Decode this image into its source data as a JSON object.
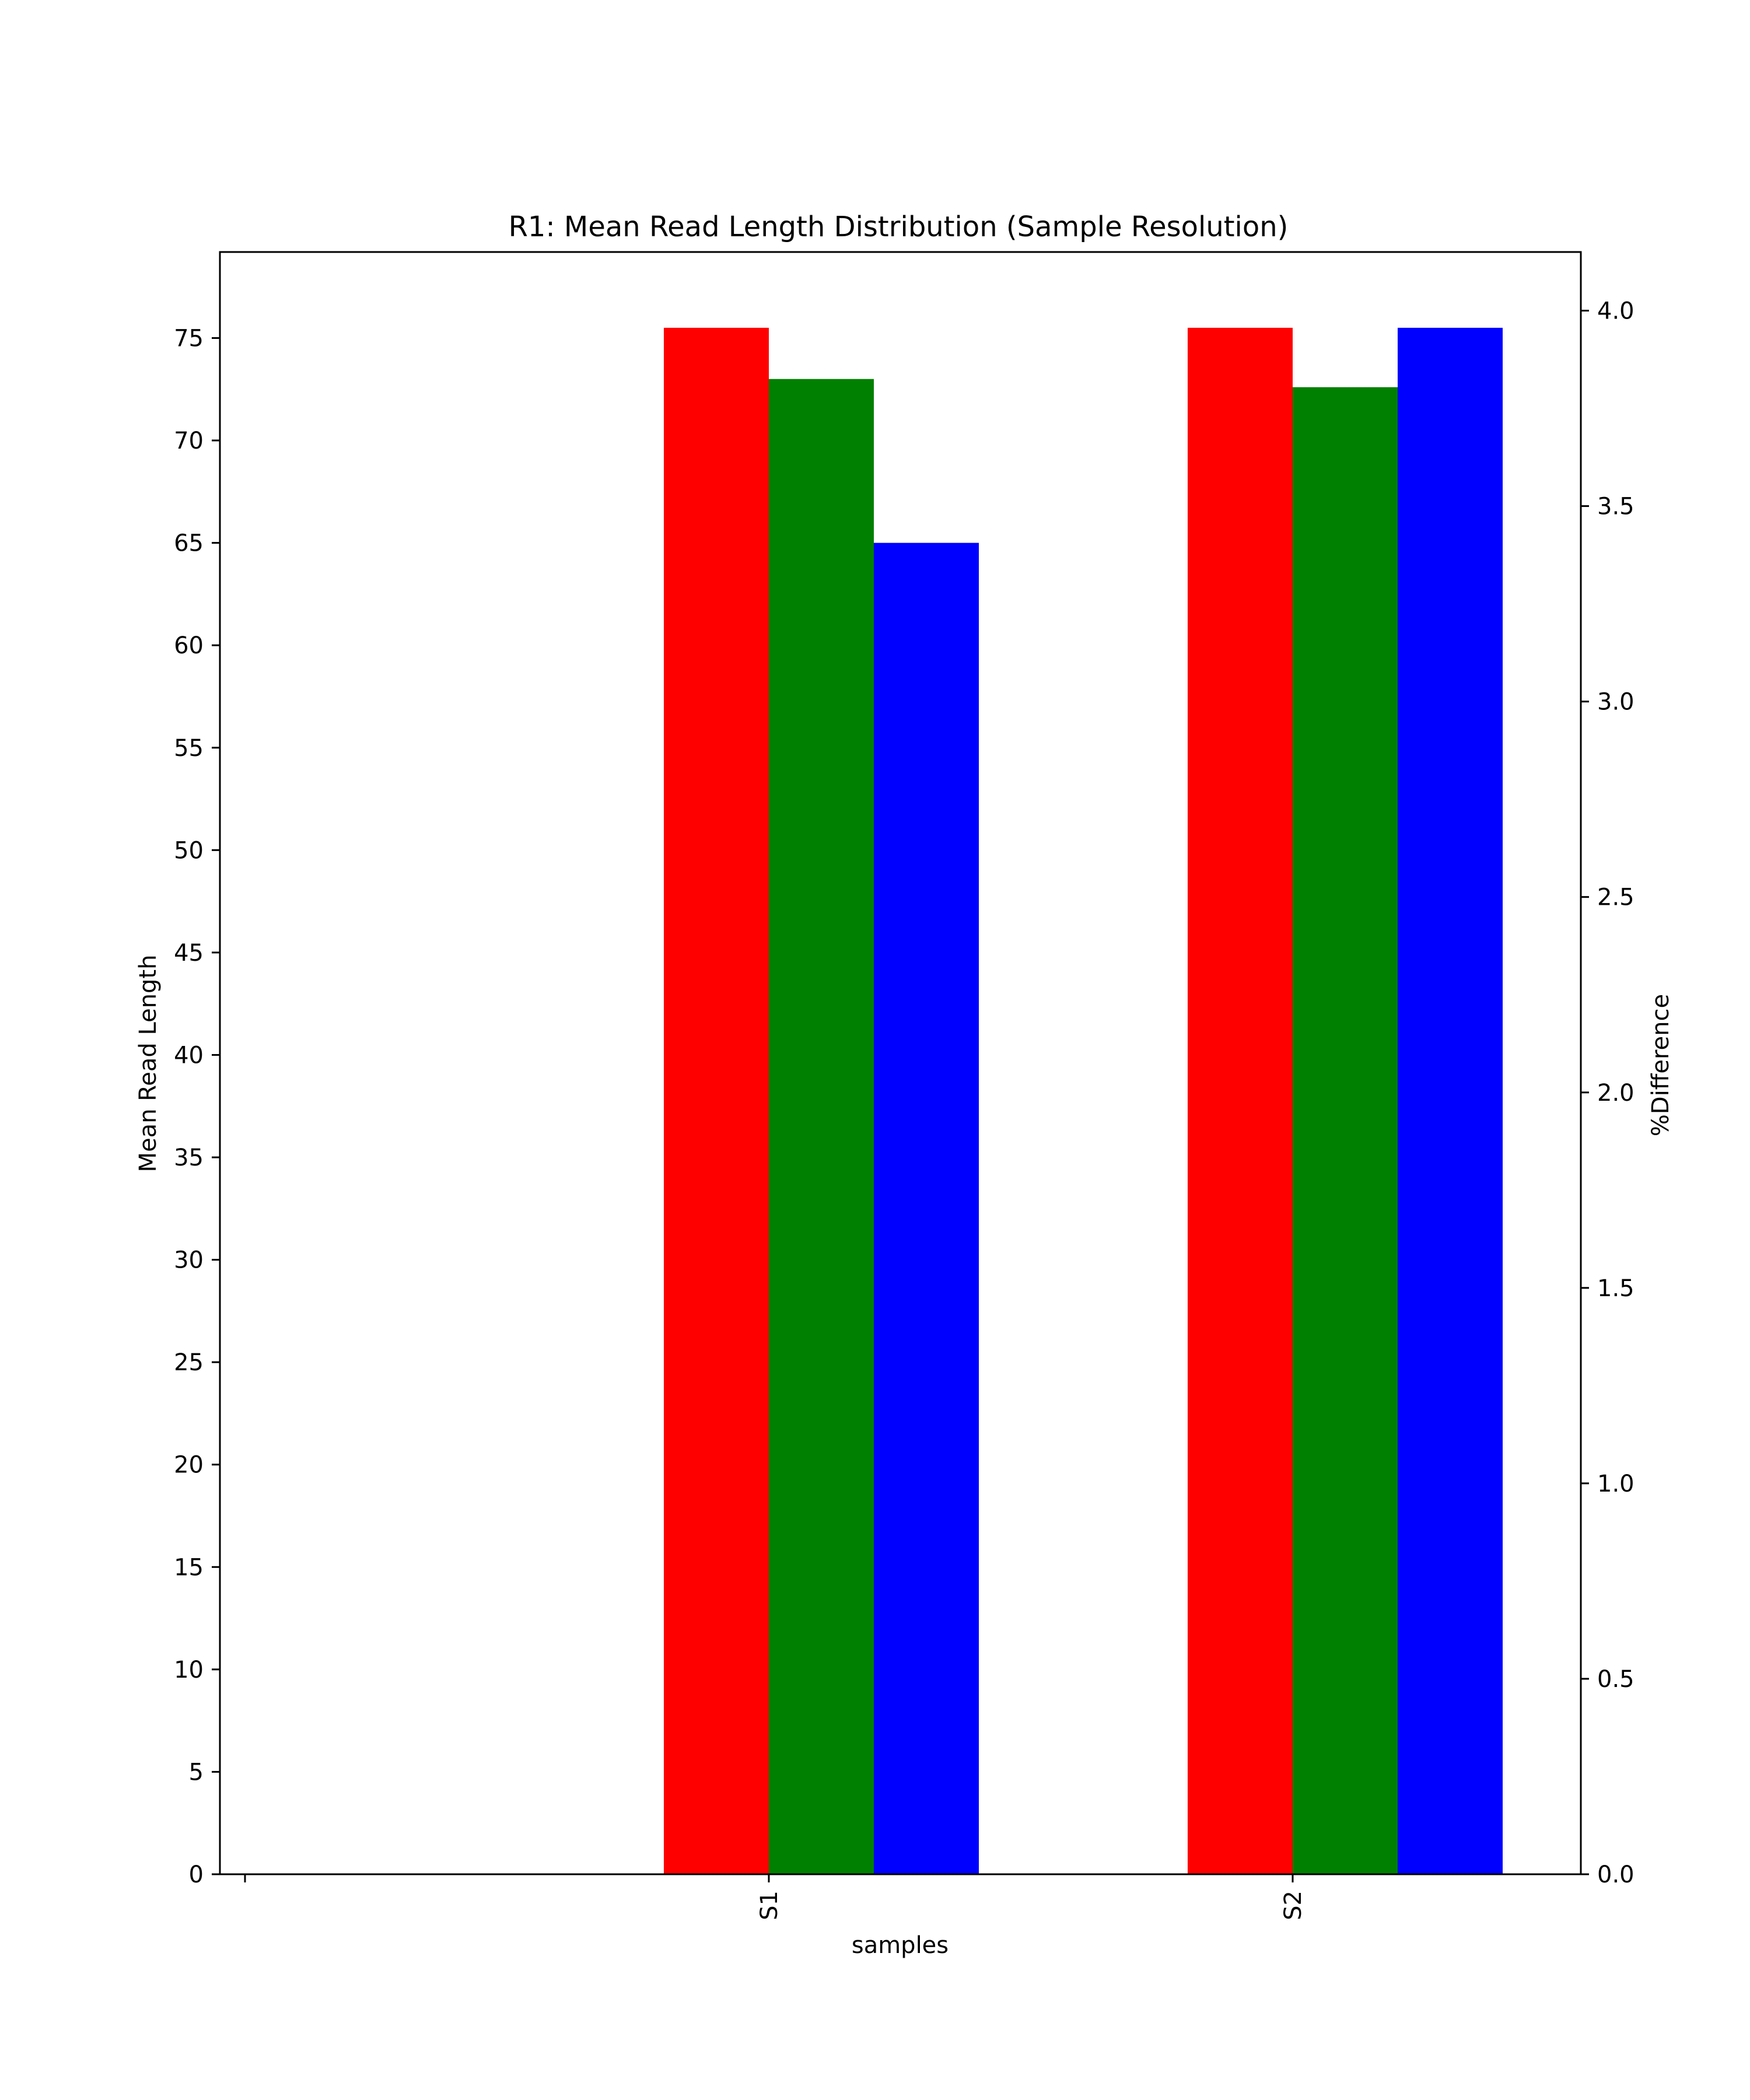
{
  "chart_data": {
    "type": "bar",
    "title": "R1: Mean Read Length Distribution (Sample Resolution)",
    "xlabel": "samples",
    "ylabel": "Mean Read Length",
    "y2label": "%Difference",
    "categories": [
      "S1",
      "S2"
    ],
    "series": [
      {
        "color": "#ff0000",
        "values": [
          75.5,
          75.5
        ]
      },
      {
        "color": "#008000",
        "values": [
          73.0,
          72.6
        ]
      },
      {
        "color": "#0000ff",
        "values": [
          65.0,
          75.5
        ]
      }
    ],
    "ylim": [
      0,
      79.2
    ],
    "yticks": [
      0,
      5,
      10,
      15,
      20,
      25,
      30,
      35,
      40,
      45,
      50,
      55,
      60,
      65,
      70,
      75
    ],
    "y2lim": [
      0,
      4.15
    ],
    "y2ticks": [
      "0.0",
      "0.5",
      "1.0",
      "1.5",
      "2.0",
      "2.5",
      "3.0",
      "3.5",
      "4.0"
    ],
    "grid": false,
    "legend": "none"
  }
}
